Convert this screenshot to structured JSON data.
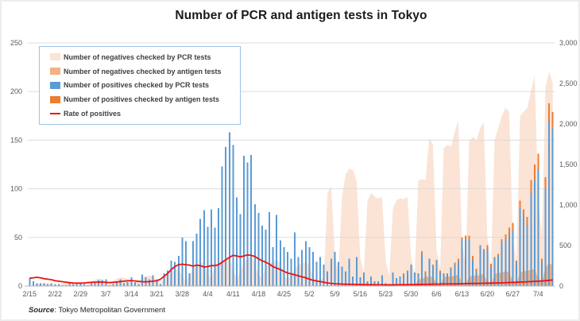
{
  "title": "Number of PCR and antigen tests in Tokyo",
  "source": {
    "label": "Source",
    "text": ": Tokyo Metropolitan Government"
  },
  "colors": {
    "neg_pcr_area": "#fbe3d5",
    "neg_antigen_area": "#f4b183",
    "pos_pcr_bar": "#5b9bd5",
    "pos_antigen_bar": "#ed7d31",
    "rate_line": "#ee1111",
    "gridline": "#d9d9d9",
    "axis_line": "#b7b7b7",
    "tick_text": "#595959",
    "legend_border": "#9dc3e6"
  },
  "chart_data": {
    "type": "combo",
    "title": "Number of PCR and antigen tests in Tokyo",
    "date_range": "2/15 - 7/8 (daily)",
    "x_labels": [
      "2/15",
      "2/22",
      "2/29",
      "3/7",
      "3/14",
      "3/21",
      "3/28",
      "4/4",
      "4/11",
      "4/18",
      "4/25",
      "5/2",
      "5/9",
      "5/16",
      "5/23",
      "5/30",
      "6/6",
      "6/13",
      "6/20",
      "6/27",
      "7/4"
    ],
    "label_every": 7,
    "axes": {
      "left": {
        "min": 0,
        "max": 250,
        "step": 50,
        "ticks": [
          "0",
          "50",
          "100",
          "150",
          "200",
          "250"
        ]
      },
      "right": {
        "min": 0,
        "max": 3000,
        "step": 500,
        "ticks": [
          "0",
          "500",
          "1,000",
          "1,500",
          "2,000",
          "2,500",
          "3,000"
        ]
      }
    },
    "grid": "horizontal",
    "legend_position": "top-left-inside",
    "series": [
      {
        "name": "Number of negatives checked by PCR tests",
        "type": "area",
        "axis": "right",
        "color": "#fbe3d5",
        "values": [
          10,
          5,
          25,
          30,
          35,
          30,
          25,
          15,
          8,
          35,
          45,
          50,
          40,
          30,
          25,
          30,
          20,
          60,
          80,
          90,
          85,
          40,
          20,
          60,
          90,
          110,
          100,
          90,
          50,
          30,
          70,
          110,
          120,
          130,
          120,
          60,
          30,
          90,
          140,
          180,
          200,
          210,
          120,
          60,
          130,
          220,
          240,
          280,
          300,
          160,
          90,
          250,
          290,
          320,
          330,
          360,
          200,
          100,
          180,
          300,
          330,
          380,
          280,
          140,
          100,
          240,
          280,
          300,
          320,
          280,
          130,
          80,
          140,
          220,
          260,
          280,
          300,
          260,
          120,
          60,
          80,
          100,
          1150,
          1230,
          400,
          150,
          1100,
          1380,
          1450,
          1430,
          1300,
          350,
          150,
          1050,
          1150,
          1100,
          1080,
          1100,
          300,
          130,
          950,
          1060,
          1080,
          1070,
          1100,
          350,
          150,
          1300,
          1320,
          1310,
          1830,
          1750,
          450,
          200,
          1700,
          1740,
          1720,
          1900,
          2040,
          550,
          250,
          1780,
          1840,
          1800,
          1950,
          2020,
          600,
          220,
          1800,
          1950,
          2100,
          2200,
          2150,
          600,
          280,
          2100,
          2150,
          2200,
          2400,
          2600,
          1100,
          600,
          2450,
          2650,
          2500
        ]
      },
      {
        "name": "Number of negatives checked by antigen tests",
        "type": "area",
        "axis": "right",
        "color": "#f4b183",
        "values": [
          0,
          0,
          0,
          0,
          0,
          0,
          0,
          0,
          0,
          0,
          0,
          0,
          0,
          0,
          0,
          0,
          0,
          0,
          0,
          0,
          0,
          0,
          0,
          0,
          0,
          0,
          0,
          0,
          0,
          0,
          0,
          0,
          0,
          0,
          0,
          0,
          0,
          0,
          0,
          0,
          0,
          0,
          0,
          0,
          0,
          0,
          0,
          0,
          0,
          0,
          0,
          0,
          0,
          0,
          0,
          0,
          0,
          0,
          0,
          0,
          0,
          0,
          0,
          0,
          0,
          0,
          0,
          0,
          0,
          0,
          0,
          0,
          0,
          0,
          0,
          0,
          0,
          0,
          0,
          0,
          0,
          0,
          0,
          0,
          0,
          0,
          0,
          0,
          0,
          0,
          0,
          0,
          0,
          0,
          0,
          0,
          0,
          0,
          0,
          0,
          0,
          0,
          0,
          0,
          0,
          0,
          0,
          80,
          90,
          110,
          120,
          110,
          40,
          20,
          110,
          120,
          115,
          130,
          140,
          45,
          25,
          120,
          130,
          125,
          140,
          150,
          50,
          20,
          150,
          160,
          170,
          180,
          175,
          60,
          30,
          170,
          180,
          190,
          200,
          210,
          90,
          60,
          230,
          280,
          260
        ]
      },
      {
        "name": "Number of positives checked by PCR tests",
        "type": "bar",
        "axis": "left",
        "color": "#5b9bd5",
        "values": [
          8,
          5,
          3,
          3,
          3,
          2,
          3,
          2,
          2,
          1,
          1,
          3,
          2,
          2,
          3,
          2,
          1,
          3,
          4,
          6,
          6,
          7,
          1,
          2,
          5,
          7,
          3,
          4,
          9,
          4,
          2,
          12,
          9,
          7,
          11,
          7,
          2,
          13,
          16,
          26,
          25,
          31,
          50,
          46,
          13,
          46,
          54,
          69,
          78,
          61,
          79,
          60,
          80,
          123,
          143,
          158,
          145,
          91,
          74,
          134,
          127,
          135,
          84,
          75,
          62,
          58,
          76,
          40,
          73,
          47,
          40,
          35,
          28,
          55,
          30,
          37,
          46,
          40,
          35,
          25,
          30,
          22,
          15,
          28,
          35,
          25,
          20,
          15,
          28,
          10,
          30,
          9,
          14,
          5,
          10,
          5,
          5,
          11,
          3,
          2,
          14,
          8,
          10,
          11,
          15,
          22,
          14,
          13,
          34,
          12,
          28,
          20,
          26,
          14,
          13,
          12,
          18,
          22,
          25,
          47,
          47,
          48,
          27,
          16,
          41,
          35,
          39,
          19,
          29,
          31,
          45,
          48,
          54,
          57,
          24,
          80,
          72,
          62,
          95,
          110,
          120,
          25,
          100,
          170,
          162
        ]
      },
      {
        "name": "Number of positives checked by antigen tests",
        "type": "bar-stacked",
        "axis": "left",
        "color": "#ed7d31",
        "values": [
          0,
          0,
          0,
          0,
          0,
          0,
          0,
          0,
          0,
          0,
          0,
          0,
          0,
          0,
          0,
          0,
          0,
          0,
          0,
          0,
          0,
          0,
          0,
          0,
          0,
          0,
          0,
          0,
          0,
          0,
          0,
          0,
          0,
          0,
          0,
          0,
          0,
          0,
          0,
          0,
          0,
          0,
          0,
          0,
          0,
          0,
          0,
          0,
          0,
          0,
          0,
          0,
          0,
          0,
          0,
          0,
          0,
          0,
          0,
          0,
          0,
          0,
          0,
          0,
          0,
          0,
          0,
          0,
          0,
          0,
          0,
          0,
          0,
          0,
          0,
          0,
          0,
          0,
          0,
          0,
          0,
          0,
          0,
          0,
          0,
          0,
          0,
          0,
          0,
          0,
          0,
          0,
          0,
          0,
          0,
          0,
          0,
          0,
          0,
          0,
          0,
          0,
          0,
          2,
          1,
          0,
          0,
          0,
          2,
          3,
          0,
          2,
          1,
          2,
          0,
          1,
          1,
          2,
          3,
          3,
          5,
          4,
          4,
          2,
          1,
          3,
          3,
          4,
          1,
          2,
          3,
          5,
          6,
          8,
          2,
          8,
          7,
          9,
          14,
          15,
          16,
          3,
          12,
          18,
          17
        ]
      },
      {
        "name": "Rate of positives",
        "type": "line",
        "axis": "left",
        "color": "#ee1111",
        "values": [
          8,
          8.5,
          9,
          8.5,
          7.5,
          7,
          6.5,
          5.5,
          5,
          4.5,
          4,
          3.5,
          3.2,
          3,
          3,
          3.2,
          3.5,
          3.8,
          4,
          4.2,
          4,
          3.8,
          3.5,
          3.8,
          4.2,
          4.6,
          5,
          5.4,
          5.6,
          5.2,
          4.8,
          4.5,
          4.3,
          4.6,
          5,
          5.4,
          7,
          10,
          13,
          17,
          20,
          22,
          22.5,
          22,
          21.5,
          20.5,
          21.5,
          21,
          19.5,
          20,
          21,
          21,
          22,
          24.5,
          27,
          29.5,
          31.5,
          31,
          30,
          31,
          32,
          31.5,
          30.5,
          28,
          26,
          24.5,
          22.5,
          20,
          18.5,
          17,
          15,
          13.5,
          12.5,
          11.5,
          10.5,
          9.5,
          8.5,
          7,
          6,
          5.2,
          4.6,
          3.8,
          3.2,
          2.8,
          2.4,
          2.2,
          2,
          1.9,
          1.8,
          1.7,
          1.6,
          1.5,
          1.5,
          1.4,
          1.4,
          1.3,
          1.3,
          1.3,
          1.2,
          1.2,
          1.2,
          1.3,
          1.3,
          1.4,
          1.4,
          1.5,
          1.5,
          1.5,
          1.6,
          1.7,
          1.8,
          1.9,
          2,
          2,
          2.1,
          2.1,
          2.2,
          2.2,
          2.3,
          2.4,
          2.5,
          2.6,
          2.7,
          2.7,
          2.8,
          2.9,
          3,
          3,
          3.1,
          3.2,
          3.3,
          3.5,
          3.6,
          3.8,
          3.9,
          4,
          4.2,
          4.4,
          4.6,
          4.8,
          5,
          5.2,
          5.5,
          5.9,
          6.3
        ]
      }
    ]
  }
}
